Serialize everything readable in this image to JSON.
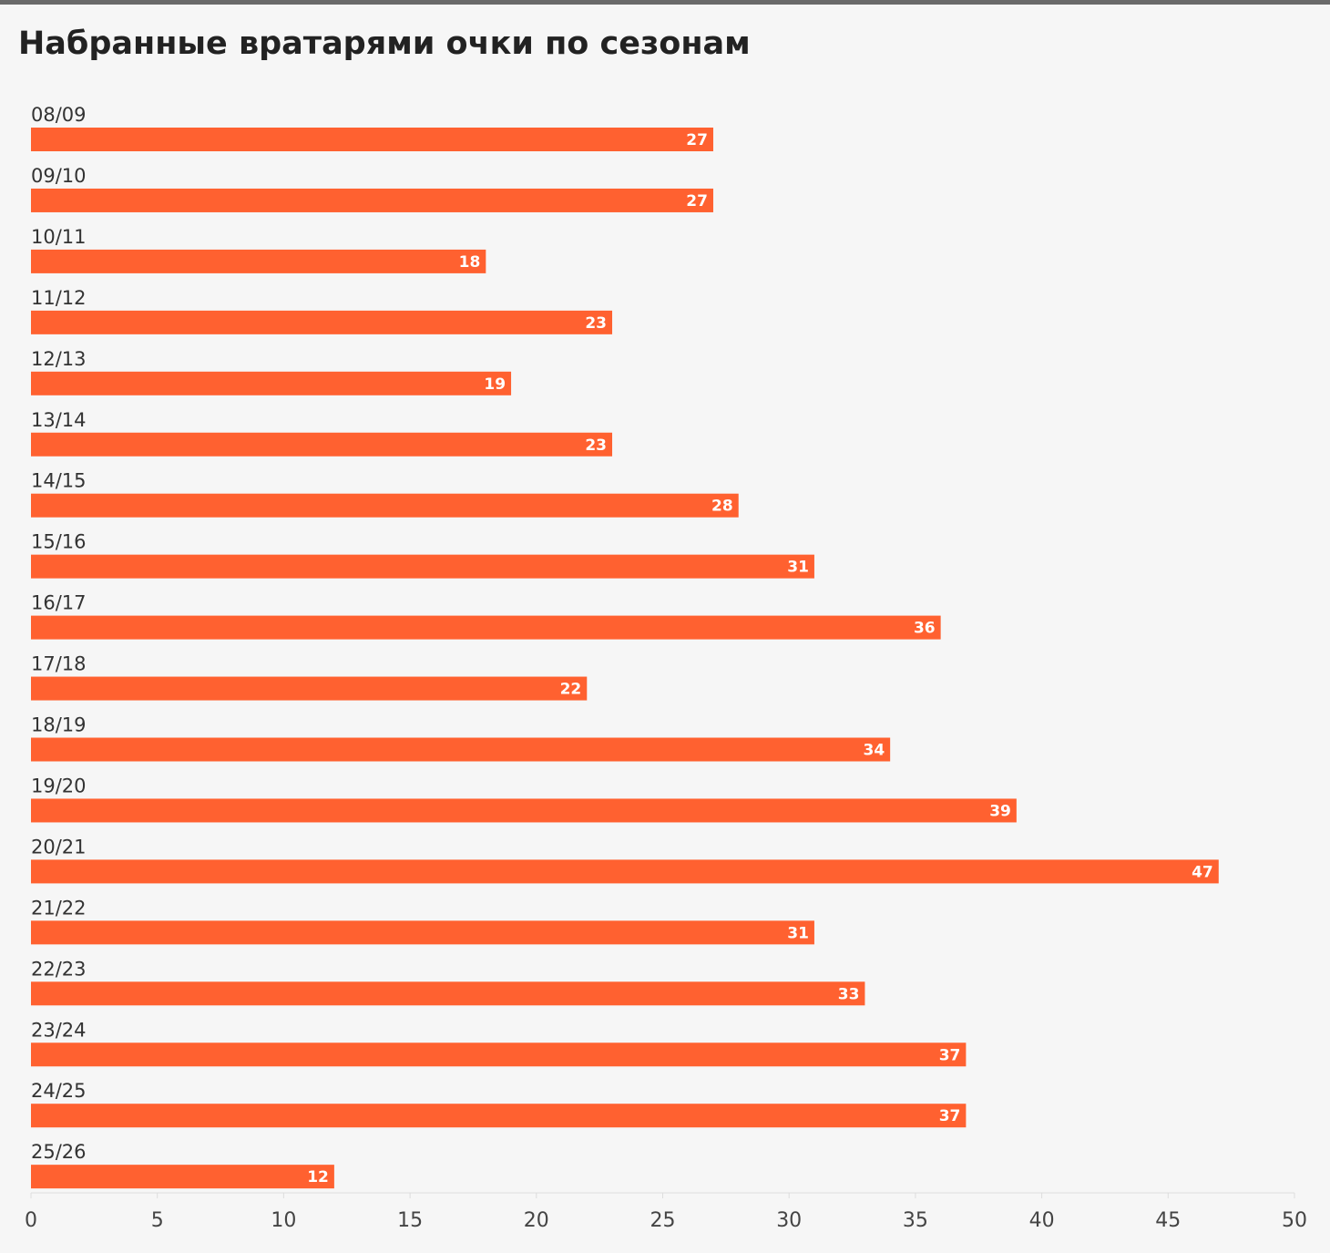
{
  "chart_data": {
    "type": "bar",
    "orientation": "horizontal",
    "title": "Набранные вратарями очки по сезонам",
    "categories": [
      "08/09",
      "09/10",
      "10/11",
      "11/12",
      "12/13",
      "13/14",
      "14/15",
      "15/16",
      "16/17",
      "17/18",
      "18/19",
      "19/20",
      "20/21",
      "21/22",
      "22/23",
      "23/24",
      "24/25",
      "25/26"
    ],
    "values": [
      27,
      27,
      18,
      23,
      19,
      23,
      28,
      31,
      36,
      22,
      34,
      39,
      47,
      31,
      33,
      37,
      37,
      12
    ],
    "xlim": [
      0,
      50
    ],
    "xticks": [
      0,
      5,
      10,
      15,
      20,
      25,
      30,
      35,
      40,
      45,
      50
    ],
    "xlabel": "",
    "ylabel": "",
    "grid": false,
    "legend": "none",
    "data_labels": true
  },
  "colors": {
    "bar": "#ff6130",
    "background": "#f6f6f6",
    "title": "#222222",
    "top_rule": "#6a6a6a",
    "axis": "#dddddd"
  }
}
